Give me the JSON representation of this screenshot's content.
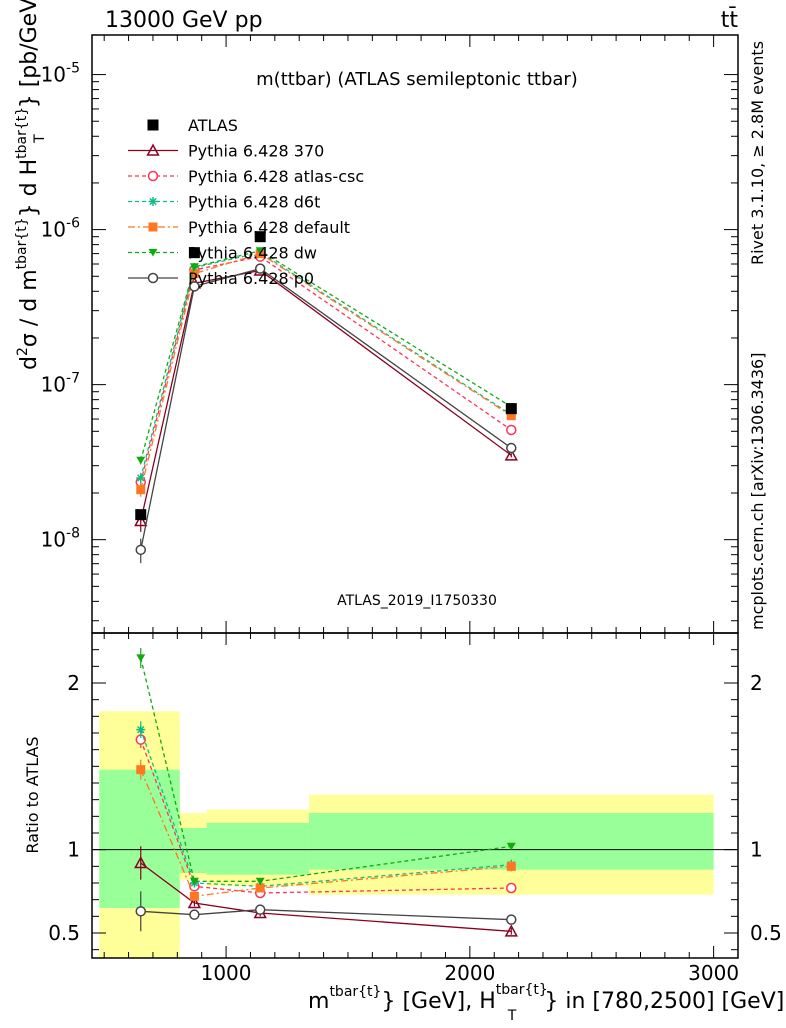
{
  "header": {
    "energy_label": "13000 GeV pp",
    "process_label": "tt̄"
  },
  "side": {
    "rivet_label": "Rivet 3.1.10, ≥ 2.8M events",
    "source_label": "mcplots.cern.ch [arXiv:1306.3436]"
  },
  "chart_data": {
    "type": "scatter",
    "title": "m(ttbar) (ATLAS semileptonic ttbar)",
    "analysis_id": "ATLAS_2019_I1750330",
    "x_label_parts": [
      "m",
      "tbar{t}",
      "} [GeV], H",
      "T",
      "tbar{t}",
      "} in [780,2500] [GeV]"
    ],
    "y_label": "d²σ / d m^{tbar{t}} d H_T^{tbar{t}} [pb/GeV²]",
    "ratio_ylabel": "Ratio to ATLAS",
    "xlim": [
      450,
      3100
    ],
    "ylim_log": [
      2.5e-09,
      1.8e-05
    ],
    "ratio_ylim": [
      0.35,
      2.3
    ],
    "x_ticks": [
      1000,
      2000,
      3000
    ],
    "x_tick_labels": [
      "1000",
      "2000",
      "3000"
    ],
    "y_ticks": [
      1e-08,
      1e-07,
      1e-06,
      1e-05
    ],
    "y_tick_labels": [
      "10^-8",
      "10^-7",
      "10^-6",
      "10^-5"
    ],
    "ratio_ticks": [
      0.5,
      1,
      2
    ],
    "ratio_tick_labels": [
      "0.5",
      "1",
      "2"
    ],
    "x": [
      650,
      870,
      1140,
      2170
    ],
    "bands": [
      {
        "x0": 480,
        "x1": 810,
        "g": [
          0.65,
          1.48
        ],
        "y": [
          0.35,
          1.83
        ]
      },
      {
        "x0": 810,
        "x1": 920,
        "g": [
          0.86,
          1.13
        ],
        "y": [
          0.82,
          1.22
        ]
      },
      {
        "x0": 920,
        "x1": 1340,
        "g": [
          0.85,
          1.16
        ],
        "y": [
          0.78,
          1.24
        ]
      },
      {
        "x0": 1340,
        "x1": 3000,
        "g": [
          0.88,
          1.22
        ],
        "y": [
          0.73,
          1.33
        ]
      }
    ],
    "series": [
      {
        "name": "ATLAS",
        "color": "#000000",
        "marker": "square-filled",
        "dash": "none",
        "values": [
          1.45e-08,
          7.1e-07,
          9e-07,
          7e-08
        ],
        "errors": [
          0,
          0,
          0,
          0
        ],
        "ratio": [
          1,
          1,
          1,
          1
        ],
        "ratio_errors": [
          0,
          0,
          0,
          0
        ]
      },
      {
        "name": "Pythia 6.428 370",
        "color": "#8b0020",
        "marker": "triangle-open",
        "dash": "none",
        "values": [
          1.32e-08,
          4.5e-07,
          5.45e-07,
          3.5e-08
        ],
        "errors": [
          0.15,
          0.03,
          0.03,
          0.03
        ],
        "ratio": [
          0.92,
          0.68,
          0.62,
          0.51
        ],
        "ratio_errors": [
          0.1,
          0.02,
          0.02,
          0.02
        ]
      },
      {
        "name": "Pythia 6.428 atlas-csc",
        "color": "#ff3355",
        "marker": "circle-open",
        "dash": "4,3",
        "values": [
          2.35e-08,
          5.5e-07,
          6.7e-07,
          5.1e-08
        ],
        "errors": [
          0.08,
          0.03,
          0.03,
          0.03
        ],
        "ratio": [
          1.66,
          0.78,
          0.74,
          0.77
        ],
        "ratio_errors": [
          0.05,
          0.02,
          0.02,
          0.03
        ]
      },
      {
        "name": "Pythia 6.428 d6t",
        "color": "#11bb88",
        "marker": "star",
        "dash": "4,3",
        "values": [
          2.5e-08,
          5.7e-07,
          7.1e-07,
          6.4e-08
        ],
        "errors": [
          0.08,
          0.03,
          0.03,
          0.03
        ],
        "ratio": [
          1.72,
          0.8,
          0.78,
          0.91
        ],
        "ratio_errors": [
          0.05,
          0.02,
          0.02,
          0.03
        ]
      },
      {
        "name": "Pythia 6.428 default",
        "color": "#ff7722",
        "marker": "square-filled",
        "dash": "7,3,2,3",
        "values": [
          2.1e-08,
          5.2e-07,
          7e-07,
          6.3e-08
        ],
        "errors": [
          0.1,
          0.03,
          0.03,
          0.03
        ],
        "ratio": [
          1.48,
          0.72,
          0.77,
          0.9
        ],
        "ratio_errors": [
          0.06,
          0.02,
          0.02,
          0.03
        ]
      },
      {
        "name": "Pythia 6.428 dw",
        "color": "#11aa11",
        "marker": "triangle-down-filled",
        "dash": "4,3",
        "values": [
          3.25e-08,
          5.75e-07,
          7.3e-07,
          7.2e-08
        ],
        "errors": [
          0.06,
          0.03,
          0.03,
          0.03
        ],
        "ratio": [
          2.15,
          0.81,
          0.81,
          1.02
        ],
        "ratio_errors": [
          0.06,
          0.02,
          0.02,
          0.02
        ]
      },
      {
        "name": "Pythia 6.428 p0",
        "color": "#444444",
        "marker": "circle-open",
        "dash": "none",
        "values": [
          8.6e-09,
          4.3e-07,
          5.6e-07,
          3.9e-08
        ],
        "errors": [
          0.18,
          0.03,
          0.03,
          0.03
        ],
        "ratio": [
          0.63,
          0.61,
          0.64,
          0.58
        ],
        "ratio_errors": [
          0.12,
          0.02,
          0.02,
          0.02
        ]
      }
    ]
  }
}
